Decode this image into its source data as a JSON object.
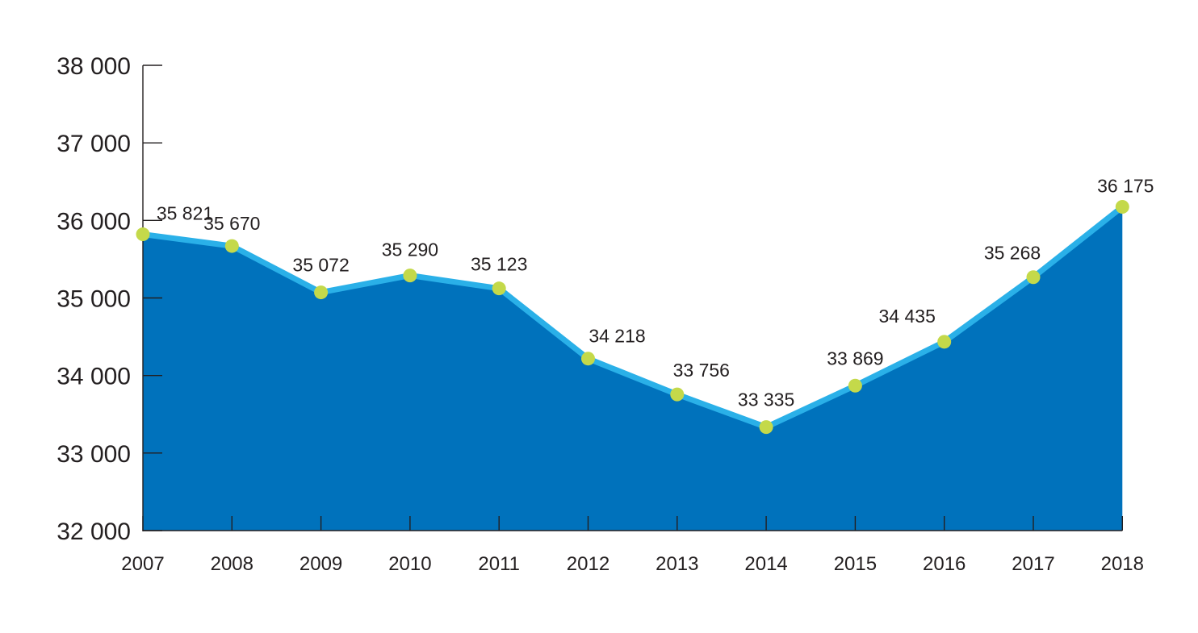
{
  "chart_data": {
    "type": "area",
    "categories": [
      "2007",
      "2008",
      "2009",
      "2010",
      "2011",
      "2012",
      "2013",
      "2014",
      "2015",
      "2016",
      "2017",
      "2018"
    ],
    "values": [
      35821,
      35670,
      35072,
      35290,
      35123,
      34218,
      33756,
      33335,
      33869,
      34435,
      35268,
      36175
    ],
    "data_labels": [
      "35 821",
      "35 670",
      "35 072",
      "35 290",
      "35 123",
      "34 218",
      "33 756",
      "33 335",
      "33 869",
      "34 435",
      "35 268",
      "36 175"
    ],
    "yticks": [
      38000,
      37000,
      36000,
      35000,
      34000,
      33000,
      32000
    ],
    "ytick_labels": [
      "38 000",
      "37 000",
      "36 000",
      "35 000",
      "34 000",
      "33 000",
      "32 000"
    ],
    "ylim": [
      32000,
      38000
    ],
    "title": "",
    "xlabel": "",
    "ylabel": "",
    "grid": false,
    "legend": "none",
    "colors": {
      "area_fill": "#0072bc",
      "line": "#2ab0e8",
      "marker": "#c4d94a",
      "axis": "#231f20",
      "text": "#231f20"
    }
  }
}
